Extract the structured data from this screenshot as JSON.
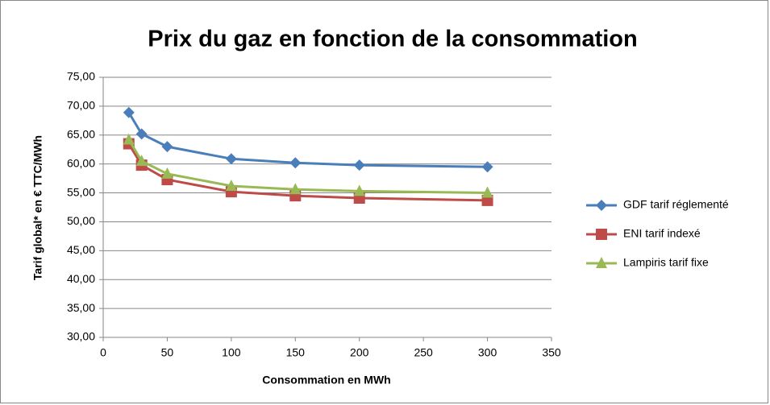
{
  "chart_data": {
    "type": "line",
    "title": "Prix du gaz en fonction de la consommation",
    "x_label": "Consommation en MWh",
    "y_label": "Tarif global* en € TTC/MWh",
    "x": [
      20,
      30,
      50,
      100,
      150,
      200,
      300
    ],
    "series": [
      {
        "name": "GDF tarif réglementé",
        "color": "#4a7ebb",
        "marker": "diamond",
        "values": [
          68.9,
          65.2,
          63.0,
          60.9,
          60.2,
          59.8,
          59.5
        ]
      },
      {
        "name": "ENI tarif indexé",
        "color": "#be4b48",
        "marker": "square",
        "values": [
          63.5,
          59.8,
          57.3,
          55.2,
          54.5,
          54.1,
          53.7
        ]
      },
      {
        "name": "Lampiris tarif fixe",
        "color": "#98b954",
        "marker": "triangle",
        "values": [
          64.2,
          60.5,
          58.3,
          56.2,
          55.6,
          55.3,
          55.0
        ]
      }
    ],
    "xlim": [
      0,
      350
    ],
    "xticks": [
      0,
      50,
      100,
      150,
      200,
      250,
      300,
      350
    ],
    "ylim": [
      30,
      75
    ],
    "yticks": [
      {
        "value": 30,
        "label": "30,00"
      },
      {
        "value": 35,
        "label": "35,00"
      },
      {
        "value": 40,
        "label": "40,00"
      },
      {
        "value": 45,
        "label": "45,00"
      },
      {
        "value": 50,
        "label": "50,00"
      },
      {
        "value": 55,
        "label": "55,00"
      },
      {
        "value": 60,
        "label": "60,00"
      },
      {
        "value": 65,
        "label": "65,00"
      },
      {
        "value": 70,
        "label": "70,00"
      },
      {
        "value": 75,
        "label": "75,00"
      }
    ],
    "grid": true,
    "legend": "right"
  }
}
